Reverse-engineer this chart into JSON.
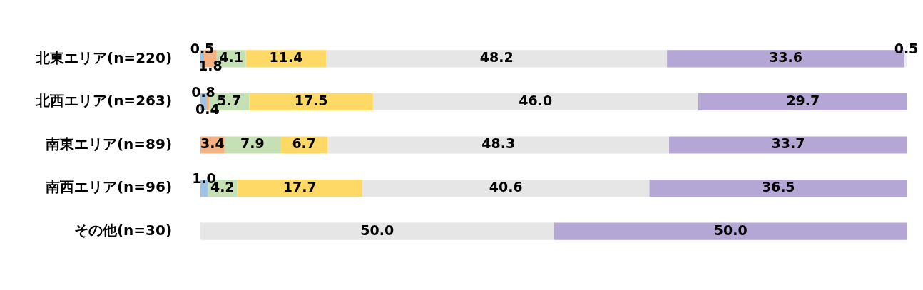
{
  "chart_data": {
    "type": "bar",
    "orientation": "horizontal",
    "stacked": true,
    "tick_labels": "y",
    "grid": false,
    "legend": false,
    "xlim": [
      0,
      100
    ],
    "categories": [
      "北東エリア(n=220)",
      "北西エリア(n=263)",
      "南東エリア(n=89)",
      "南西エリア(n=96)",
      "その他(n=30)"
    ],
    "series": [
      {
        "color": "#9dc3e6",
        "values": [
          0.5,
          0.8,
          0,
          1.0,
          0
        ],
        "value_labels": [
          "0.5",
          "0.8",
          null,
          "1.0",
          null
        ]
      },
      {
        "color": "#f4b183",
        "values": [
          1.8,
          0.4,
          3.4,
          0,
          0
        ],
        "value_labels": [
          "1.8",
          "0.4",
          "3.4",
          null,
          null
        ]
      },
      {
        "color": "#c5e0b4",
        "values": [
          4.1,
          5.7,
          7.9,
          4.2,
          0
        ],
        "value_labels": [
          "4.1",
          "5.7",
          "7.9",
          "4.2",
          null
        ]
      },
      {
        "color": "#ffd966",
        "values": [
          11.4,
          17.5,
          6.7,
          17.7,
          0
        ],
        "value_labels": [
          "11.4",
          "17.5",
          "6.7",
          "17.7",
          null
        ]
      },
      {
        "color": "#e7e6e6",
        "values": [
          48.2,
          46.0,
          48.3,
          40.6,
          50.0
        ],
        "value_labels": [
          "48.2",
          "46.0",
          "48.3",
          "40.6",
          "50.0"
        ]
      },
      {
        "color": "#b4a7d6",
        "values": [
          33.6,
          29.7,
          33.7,
          36.5,
          50.0
        ],
        "value_labels": [
          "33.6",
          "29.7",
          "33.7",
          "36.5",
          "50.0"
        ]
      },
      {
        "color": "#ededed",
        "values": [
          0.5,
          0,
          0,
          0,
          0
        ],
        "value_labels": [
          "0.5",
          null,
          null,
          null,
          null
        ]
      }
    ]
  }
}
